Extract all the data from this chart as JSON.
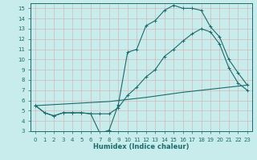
{
  "title": "",
  "xlabel": "Humidex (Indice chaleur)",
  "bg_color": "#c8ecec",
  "grid_color": "#b8d8d8",
  "line_color": "#1a6b6b",
  "xlim": [
    -0.5,
    23.5
  ],
  "ylim": [
    3,
    15.5
  ],
  "xticks": [
    0,
    1,
    2,
    3,
    4,
    5,
    6,
    7,
    8,
    9,
    10,
    11,
    12,
    13,
    14,
    15,
    16,
    17,
    18,
    19,
    20,
    21,
    22,
    23
  ],
  "yticks": [
    3,
    4,
    5,
    6,
    7,
    8,
    9,
    10,
    11,
    12,
    13,
    14,
    15
  ],
  "curve1_x": [
    0,
    1,
    2,
    3,
    4,
    5,
    6,
    7,
    8,
    9,
    10,
    11,
    12,
    13,
    14,
    15,
    16,
    17,
    18,
    19,
    20,
    21,
    22,
    23
  ],
  "curve1_y": [
    5.5,
    4.8,
    4.5,
    4.8,
    4.8,
    4.8,
    4.7,
    2.8,
    3.1,
    5.6,
    10.7,
    11.0,
    13.3,
    13.8,
    14.8,
    15.3,
    15.0,
    15.0,
    14.8,
    13.2,
    12.2,
    10.0,
    8.7,
    7.5
  ],
  "curve2_x": [
    0,
    1,
    2,
    3,
    4,
    5,
    6,
    7,
    8,
    9,
    10,
    11,
    12,
    13,
    14,
    15,
    16,
    17,
    18,
    19,
    20,
    21,
    22,
    23
  ],
  "curve2_y": [
    5.5,
    4.8,
    4.5,
    4.8,
    4.8,
    4.8,
    4.7,
    4.7,
    4.7,
    5.3,
    6.5,
    7.3,
    8.3,
    9.0,
    10.3,
    11.0,
    11.8,
    12.5,
    13.0,
    12.7,
    11.5,
    9.2,
    7.7,
    7.0
  ],
  "curve3_x": [
    0,
    4,
    8,
    12,
    16,
    20,
    23
  ],
  "curve3_y": [
    5.5,
    5.7,
    5.9,
    6.3,
    6.8,
    7.2,
    7.5
  ]
}
